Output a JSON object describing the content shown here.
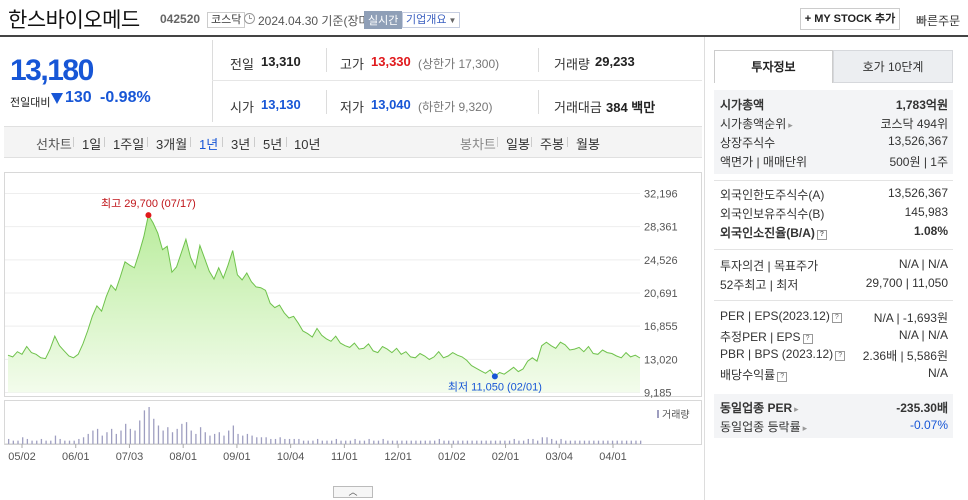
{
  "header": {
    "stock_name": "한스바이오메드",
    "stock_code": "042520",
    "market": "코스닥",
    "date_text": "2024.04.30 기준(장마감)",
    "realtime": "실시간",
    "company_info": "기업개요",
    "mystock_button": "+ MY STOCK 추가",
    "quick_order": "빠른주문"
  },
  "quote": {
    "price": "13,180",
    "change_label": "전일대비",
    "change": "130",
    "change_pct": "-0.98%",
    "direction": "down",
    "prev_close_label": "전일",
    "prev_close": "13,310",
    "open_label": "시가",
    "open": "13,130",
    "high_label": "고가",
    "high": "13,330",
    "upper_limit": "(상한가 17,300)",
    "low_label": "저가",
    "low": "13,040",
    "lower_limit": "(하한가 9,320)",
    "volume_label": "거래량",
    "volume": "29,233",
    "amount_label": "거래대금",
    "amount": "384 백만"
  },
  "periods": {
    "line_chart_label": "선차트",
    "line_items": [
      "1일",
      "1주일",
      "3개월",
      "1년",
      "3년",
      "5년",
      "10년"
    ],
    "selected": "1년",
    "candle_label": "봉차트",
    "candle_items": [
      "일봉",
      "주봉",
      "월봉"
    ]
  },
  "tabs": {
    "invest_info": "투자정보",
    "quote10": "호가 10단계"
  },
  "info": {
    "market_cap_label": "시가총액",
    "market_cap": "1,783억원",
    "rank_label": "시가총액순위",
    "rank": "코스닥 494위",
    "shares_label": "상장주식수",
    "shares": "13,526,367",
    "par_label": "액면가 | 매매단위",
    "par": "500원 | 1주",
    "foreign_limit_label": "외국인한도주식수(A)",
    "foreign_limit": "13,526,367",
    "foreign_hold_label": "외국인보유주식수(B)",
    "foreign_hold": "145,983",
    "foreign_ratio_label": "외국인소진율(B/A)",
    "foreign_ratio": "1.08%",
    "opinion_label": "투자의견 | 목표주가",
    "opinion": "N/A | N/A",
    "week52_label": "52주최고 | 최저",
    "week52": "29,700 | 11,050",
    "per_label": "PER | EPS(2023.12)",
    "per": "N/A | -1,693원",
    "est_per_label": "추정PER | EPS",
    "est_per": "N/A | N/A",
    "pbr_label": "PBR | BPS (2023.12)",
    "pbr": "2.36배 | 5,586원",
    "div_label": "배당수익률",
    "div": "N/A",
    "ind_per_label": "동일업종 PER",
    "ind_per": "-235.30배",
    "ind_chg_label": "동일업종 등락률",
    "ind_chg": "-0.07%"
  },
  "chart_data": {
    "type": "area",
    "y_ticks": [
      "32,196",
      "28,361",
      "24,526",
      "20,691",
      "16,855",
      "13,020",
      "9,185"
    ],
    "ylim": [
      9185,
      32196
    ],
    "x_ticks": [
      "05/02",
      "06/01",
      "07/03",
      "08/01",
      "09/01",
      "10/04",
      "11/01",
      "12/01",
      "01/02",
      "02/01",
      "03/04",
      "04/01"
    ],
    "series": [
      {
        "values": [
          13500,
          13300,
          13900,
          13600,
          14500,
          13800,
          13600,
          13200,
          13100,
          14200,
          15700,
          14600,
          14000,
          13400,
          13200,
          13600,
          14800,
          16300,
          18000,
          19200,
          18600,
          20300,
          21600,
          21000,
          22600,
          24300,
          23900,
          23600,
          25300,
          27200,
          29700,
          28800,
          27600,
          25700,
          26100,
          23100,
          23700,
          25300,
          26900,
          24800,
          23600,
          26200,
          24700,
          23200,
          22300,
          23600,
          22400,
          23900,
          25600,
          22800,
          22200,
          23000,
          22000,
          21400,
          21300,
          21000,
          19500,
          19000,
          19300,
          18400,
          17800,
          18000,
          17200,
          16300,
          16000,
          15600,
          16600,
          15800,
          15400,
          15100,
          15700,
          14900,
          14600,
          14400,
          14900,
          14200,
          14300,
          14800,
          14000,
          13800,
          14500,
          14200,
          13800,
          14300,
          13600,
          13900,
          13300,
          13200,
          13700,
          13400,
          13000,
          13300,
          13900,
          13200,
          13400,
          13800,
          13500,
          13300,
          12900,
          12300,
          12000,
          11700,
          11400,
          11800,
          11050,
          11500,
          11300,
          11700,
          12100,
          11600,
          11900,
          12800,
          13200,
          12800,
          14600,
          15000,
          14600,
          14300,
          15000,
          14700,
          14100,
          14200,
          14400,
          13900,
          14500,
          13700,
          13600,
          14100,
          13800,
          13700,
          13400,
          13200,
          13800,
          13300,
          13500,
          13180
        ]
      }
    ],
    "high_annotation": "최고 29,700 (07/17)",
    "low_annotation": "최저 11,050 (02/01)",
    "volume_label": "거래량",
    "volume": [
      3,
      2,
      2,
      4,
      3,
      2,
      2,
      3,
      2,
      2,
      5,
      3,
      2,
      2,
      2,
      3,
      4,
      6,
      8,
      9,
      5,
      7,
      9,
      6,
      8,
      12,
      9,
      8,
      14,
      20,
      22,
      15,
      11,
      8,
      10,
      7,
      9,
      12,
      13,
      8,
      6,
      10,
      7,
      5,
      6,
      7,
      5,
      8,
      11,
      6,
      5,
      6,
      5,
      4,
      4,
      4,
      3,
      3,
      4,
      3,
      3,
      3,
      3,
      2,
      2,
      2,
      3,
      2,
      2,
      2,
      3,
      2,
      2,
      2,
      3,
      2,
      2,
      3,
      2,
      2,
      3,
      2,
      2,
      2,
      2,
      2,
      2,
      2,
      2,
      2,
      2,
      2,
      3,
      2,
      2,
      2,
      2,
      2,
      2,
      2,
      2,
      2,
      2,
      2,
      2,
      2,
      2,
      2,
      3,
      2,
      2,
      3,
      3,
      2,
      4,
      4,
      3,
      2,
      3,
      2,
      2,
      2,
      2,
      2,
      2,
      2,
      2,
      2,
      2,
      2,
      2,
      2,
      2,
      2,
      2,
      2
    ]
  }
}
